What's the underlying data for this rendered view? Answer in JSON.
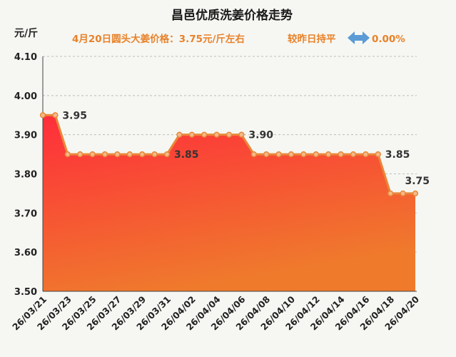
{
  "chart_data": {
    "type": "area",
    "title": "昌邑优质洗姜价格走势",
    "subtitle_left": "4月20日圆头大姜价格：3.75元/斤左右",
    "subtitle_right_label": "较昨日持平",
    "subtitle_change": "0.00%",
    "ylabel": "元/斤",
    "ylim": [
      3.5,
      4.1
    ],
    "yticks": [
      "3.50",
      "3.60",
      "3.70",
      "3.80",
      "3.90",
      "4.00",
      "4.10"
    ],
    "grid": true,
    "x": [
      "26/03/21",
      "26/03/22",
      "26/03/23",
      "26/03/24",
      "26/03/25",
      "26/03/26",
      "26/03/27",
      "26/03/28",
      "26/03/29",
      "26/03/30",
      "26/03/31",
      "26/04/01",
      "26/04/02",
      "26/04/03",
      "26/04/04",
      "26/04/05",
      "26/04/06",
      "26/04/07",
      "26/04/08",
      "26/04/09",
      "26/04/10",
      "26/04/11",
      "26/04/12",
      "26/04/13",
      "26/04/14",
      "26/04/15",
      "26/04/16",
      "26/04/17",
      "26/04/18",
      "26/04/19",
      "26/04/20"
    ],
    "xtick_labels": [
      "26/03/21",
      "26/03/23",
      "26/03/25",
      "26/03/27",
      "26/03/29",
      "26/03/31",
      "26/04/02",
      "26/04/04",
      "26/04/06",
      "26/04/08",
      "26/04/10",
      "26/04/12",
      "26/04/14",
      "26/04/16",
      "26/04/18",
      "26/04/20"
    ],
    "values": [
      3.95,
      3.95,
      3.85,
      3.85,
      3.85,
      3.85,
      3.85,
      3.85,
      3.85,
      3.85,
      3.85,
      3.9,
      3.9,
      3.9,
      3.9,
      3.9,
      3.9,
      3.85,
      3.85,
      3.85,
      3.85,
      3.85,
      3.85,
      3.85,
      3.85,
      3.85,
      3.85,
      3.85,
      3.75,
      3.75,
      3.75
    ],
    "data_labels": [
      {
        "index": 1,
        "text": "3.95"
      },
      {
        "index": 10,
        "text": "3.85"
      },
      {
        "index": 16,
        "text": "3.90"
      },
      {
        "index": 27,
        "text": "3.85"
      },
      {
        "index": 30,
        "text": "3.75"
      }
    ],
    "colors": {
      "title": "#1a1a1a",
      "subtitle": "#e8822a",
      "line": "#e8883a",
      "marker_fill": "#f4b989",
      "area_top": "#ff2d3b",
      "area_bottom": "#ef7a2c",
      "grid": "#bdbdbd",
      "arrow": "#5b9bd5",
      "axis_text": "#222222"
    },
    "icons": {
      "change_indicator": "double-arrow-icon"
    }
  }
}
